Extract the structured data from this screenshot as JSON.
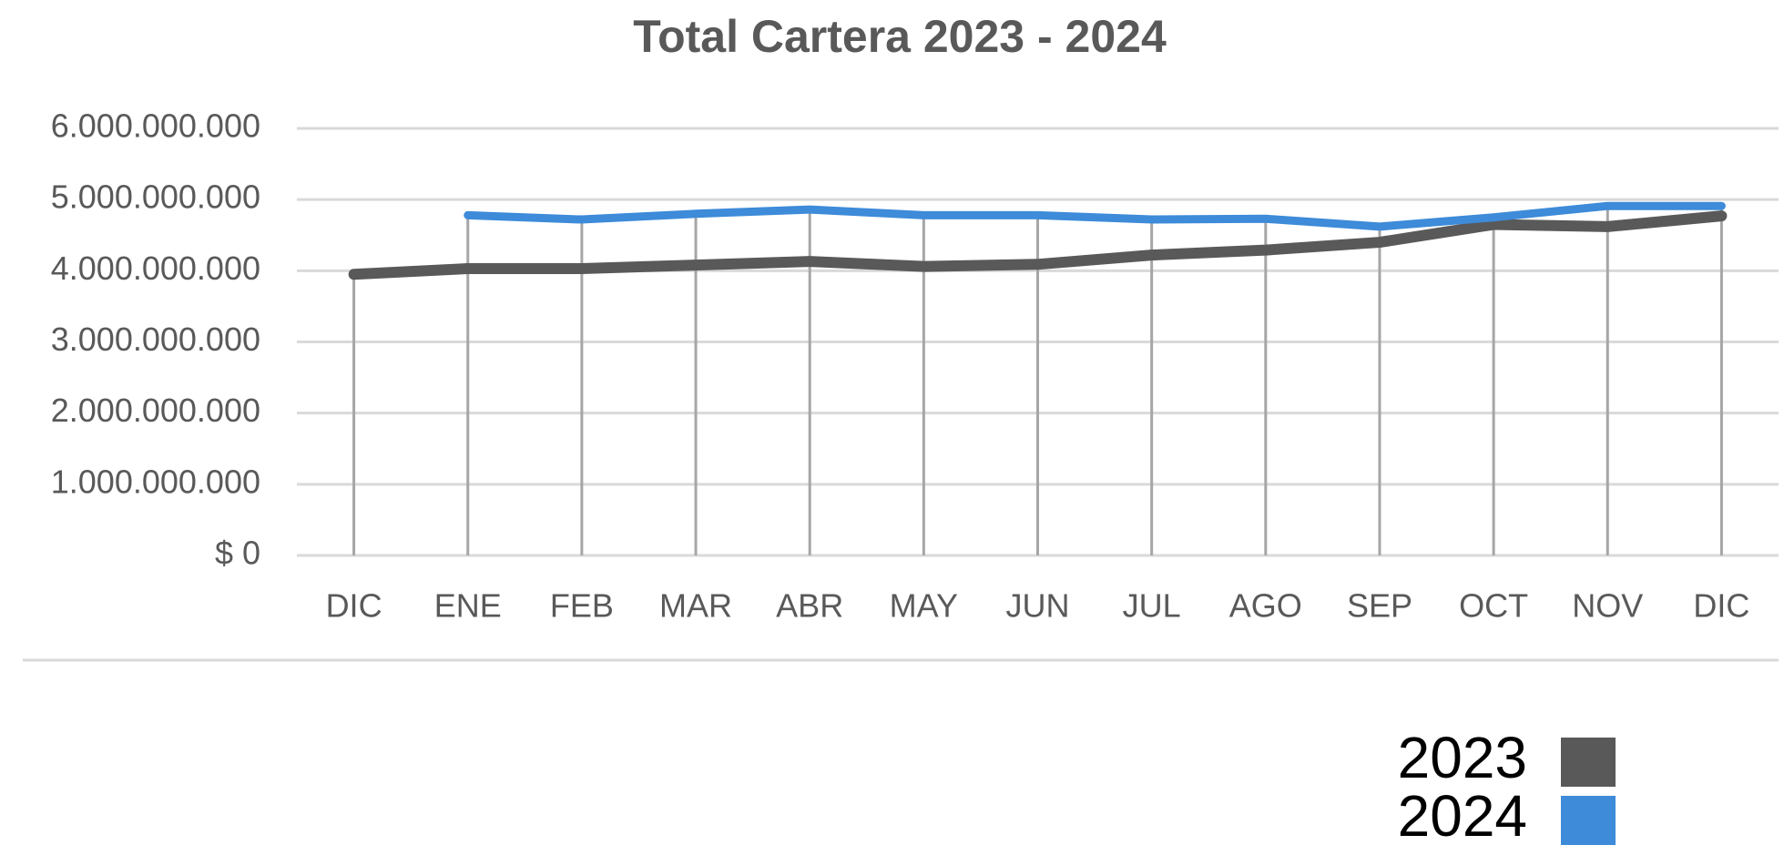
{
  "chart_data": {
    "type": "line",
    "title": "Total Cartera 2023 - 2024",
    "categories": [
      "DIC",
      "ENE",
      "FEB",
      "MAR",
      "ABR",
      "MAY",
      "JUN",
      "JUL",
      "AGO",
      "SEP",
      "OCT",
      "NOV",
      "DIC"
    ],
    "series": [
      {
        "name": "2023",
        "color": "#595959",
        "values": [
          3950000000,
          4030000000,
          4030000000,
          4080000000,
          4130000000,
          4060000000,
          4090000000,
          4220000000,
          4290000000,
          4400000000,
          4650000000,
          4620000000,
          4770000000
        ]
      },
      {
        "name": "2024",
        "color": "#3d8bd9",
        "values": [
          null,
          4780000000,
          4720000000,
          4800000000,
          4860000000,
          4780000000,
          4780000000,
          4720000000,
          4730000000,
          4620000000,
          4750000000,
          4910000000,
          4910000000
        ]
      }
    ],
    "ylim": [
      0,
      6000000000
    ],
    "yticks": [
      {
        "value": 0,
        "label": "$ 0"
      },
      {
        "value": 1000000000,
        "label": "1.000.000.000"
      },
      {
        "value": 2000000000,
        "label": "2.000.000.000"
      },
      {
        "value": 3000000000,
        "label": "3.000.000.000"
      },
      {
        "value": 4000000000,
        "label": "4.000.000.000"
      },
      {
        "value": 5000000000,
        "label": "5.000.000.000"
      },
      {
        "value": 6000000000,
        "label": "6.000.000.000"
      }
    ],
    "grid": true,
    "drop_lines": true,
    "legend": "bottom-right"
  }
}
